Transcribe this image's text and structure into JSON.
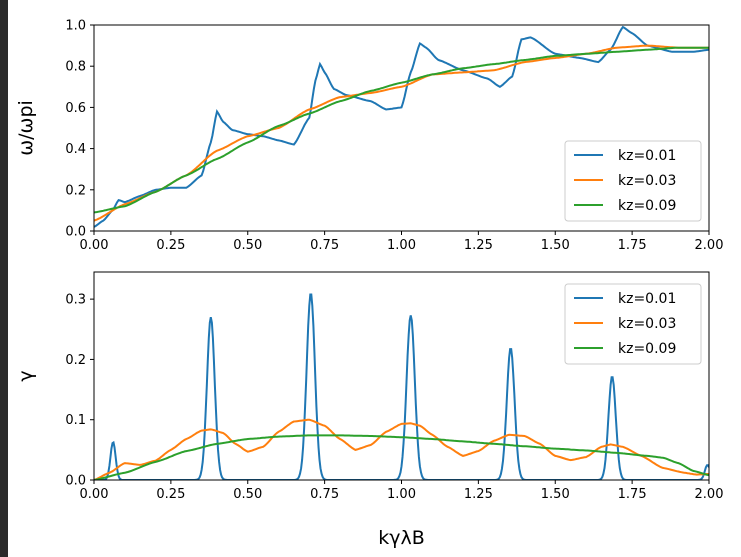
{
  "chart_data": [
    {
      "type": "line",
      "ylabel": "ω/ωpi",
      "xlabel": "",
      "xlim": [
        0,
        2
      ],
      "ylim": [
        0,
        1
      ],
      "xticks": [
        "0.00",
        "0.25",
        "0.50",
        "0.75",
        "1.00",
        "1.25",
        "1.50",
        "1.75",
        "2.00"
      ],
      "yticks": [
        "0.0",
        "0.2",
        "0.4",
        "0.6",
        "0.8",
        "1.0"
      ],
      "legend": "lower-right",
      "grid": false,
      "series": [
        {
          "name": "kz=0.01",
          "color": "#1f77b4",
          "x": [
            0,
            0.03,
            0.06,
            0.08,
            0.1,
            0.15,
            0.2,
            0.25,
            0.3,
            0.35,
            0.38,
            0.4,
            0.42,
            0.45,
            0.5,
            0.55,
            0.6,
            0.65,
            0.7,
            0.72,
            0.735,
            0.75,
            0.78,
            0.82,
            0.9,
            0.95,
            1.0,
            1.03,
            1.06,
            1.08,
            1.12,
            1.2,
            1.28,
            1.32,
            1.36,
            1.39,
            1.42,
            1.5,
            1.58,
            1.64,
            1.68,
            1.72,
            1.75,
            1.8,
            1.88,
            1.95,
            2.0
          ],
          "y": [
            0.02,
            0.05,
            0.1,
            0.15,
            0.14,
            0.17,
            0.2,
            0.21,
            0.21,
            0.27,
            0.43,
            0.58,
            0.53,
            0.49,
            0.47,
            0.46,
            0.44,
            0.42,
            0.55,
            0.73,
            0.81,
            0.77,
            0.69,
            0.66,
            0.63,
            0.59,
            0.6,
            0.77,
            0.91,
            0.89,
            0.83,
            0.78,
            0.74,
            0.7,
            0.75,
            0.93,
            0.94,
            0.86,
            0.84,
            0.82,
            0.88,
            0.99,
            0.96,
            0.9,
            0.87,
            0.87,
            0.88
          ]
        },
        {
          "name": "kz=0.03",
          "color": "#ff7f0e",
          "x": [
            0,
            0.1,
            0.2,
            0.3,
            0.4,
            0.5,
            0.6,
            0.7,
            0.8,
            0.9,
            1.0,
            1.1,
            1.2,
            1.3,
            1.4,
            1.5,
            1.6,
            1.7,
            1.8,
            1.9,
            2.0
          ],
          "y": [
            0.05,
            0.13,
            0.19,
            0.27,
            0.39,
            0.46,
            0.5,
            0.59,
            0.65,
            0.67,
            0.7,
            0.76,
            0.77,
            0.78,
            0.82,
            0.84,
            0.86,
            0.89,
            0.9,
            0.89,
            0.89
          ]
        },
        {
          "name": "kz=0.09",
          "color": "#2ca02c",
          "x": [
            0,
            0.1,
            0.2,
            0.3,
            0.4,
            0.5,
            0.6,
            0.7,
            0.8,
            0.9,
            1.0,
            1.1,
            1.2,
            1.3,
            1.4,
            1.5,
            1.6,
            1.7,
            1.8,
            1.9,
            2.0
          ],
          "y": [
            0.09,
            0.12,
            0.19,
            0.27,
            0.35,
            0.43,
            0.51,
            0.57,
            0.63,
            0.68,
            0.72,
            0.76,
            0.79,
            0.81,
            0.83,
            0.85,
            0.86,
            0.87,
            0.88,
            0.89,
            0.89
          ]
        }
      ]
    },
    {
      "type": "line",
      "ylabel": "γ",
      "xlabel": "kγλB",
      "xlim": [
        0,
        2
      ],
      "ylim": [
        0,
        0.345
      ],
      "xticks": [
        "0.00",
        "0.25",
        "0.50",
        "0.75",
        "1.00",
        "1.25",
        "1.50",
        "1.75",
        "2.00"
      ],
      "yticks": [
        "0.0",
        "0.1",
        "0.2",
        "0.3"
      ],
      "legend": "top-right",
      "grid": false,
      "series": [
        {
          "name": "kz=0.01",
          "color": "#1f77b4",
          "peaks": [
            [
              0.062,
              0.063,
              0.012
            ],
            [
              0.38,
              0.27,
              0.018
            ],
            [
              0.705,
              0.31,
              0.019
            ],
            [
              1.03,
              0.273,
              0.019
            ],
            [
              1.355,
              0.219,
              0.018
            ],
            [
              1.685,
              0.172,
              0.017
            ],
            [
              1.995,
              0.025,
              0.012
            ]
          ]
        },
        {
          "name": "kz=0.03",
          "color": "#ff7f0e",
          "x": [
            0,
            0.05,
            0.1,
            0.15,
            0.2,
            0.25,
            0.3,
            0.35,
            0.38,
            0.42,
            0.46,
            0.5,
            0.55,
            0.6,
            0.65,
            0.7,
            0.75,
            0.8,
            0.85,
            0.9,
            0.95,
            1.0,
            1.03,
            1.06,
            1.1,
            1.15,
            1.2,
            1.25,
            1.3,
            1.35,
            1.4,
            1.45,
            1.5,
            1.55,
            1.6,
            1.65,
            1.68,
            1.72,
            1.78,
            1.85,
            1.92,
            1.96,
            2.0
          ],
          "y": [
            0,
            0.012,
            0.028,
            0.025,
            0.032,
            0.05,
            0.068,
            0.082,
            0.084,
            0.078,
            0.06,
            0.047,
            0.055,
            0.08,
            0.097,
            0.1,
            0.09,
            0.068,
            0.05,
            0.058,
            0.08,
            0.093,
            0.094,
            0.09,
            0.075,
            0.055,
            0.04,
            0.048,
            0.065,
            0.075,
            0.073,
            0.06,
            0.04,
            0.033,
            0.038,
            0.055,
            0.059,
            0.055,
            0.04,
            0.02,
            0.012,
            0.009,
            0.01
          ]
        },
        {
          "name": "kz=0.09",
          "color": "#2ca02c",
          "x": [
            0,
            0.1,
            0.2,
            0.3,
            0.4,
            0.5,
            0.6,
            0.7,
            0.8,
            0.9,
            1.0,
            1.1,
            1.2,
            1.3,
            1.4,
            1.5,
            1.6,
            1.7,
            1.8,
            1.85,
            1.9,
            1.95,
            2.0
          ],
          "y": [
            0,
            0.012,
            0.03,
            0.048,
            0.06,
            0.068,
            0.072,
            0.074,
            0.074,
            0.073,
            0.071,
            0.068,
            0.064,
            0.06,
            0.056,
            0.052,
            0.049,
            0.045,
            0.04,
            0.037,
            0.028,
            0.015,
            0.008
          ]
        }
      ]
    }
  ]
}
